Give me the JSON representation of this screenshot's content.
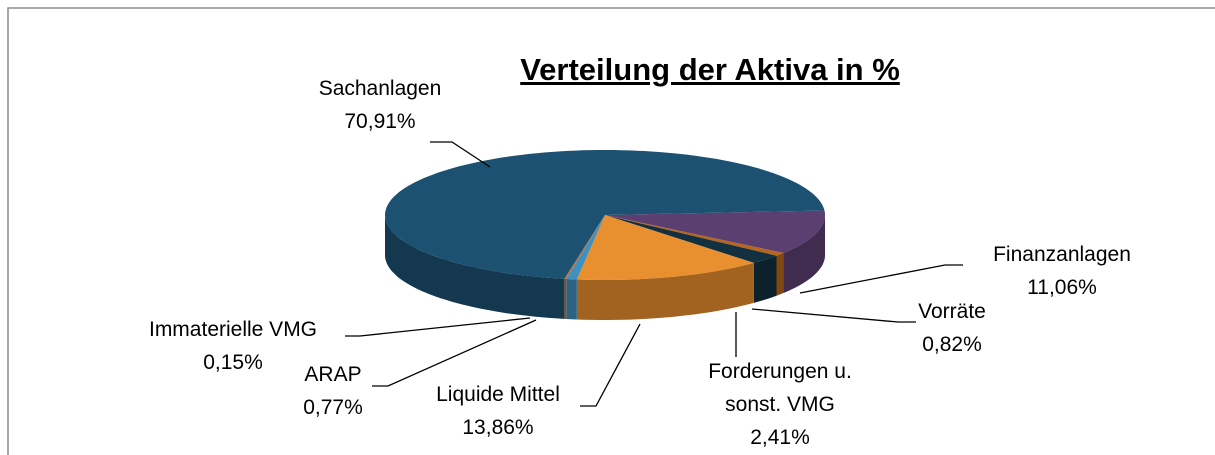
{
  "chart_data": {
    "type": "pie3d",
    "title": "Verteilung der Aktiva in %",
    "categories": [
      "Sachanlagen",
      "Finanzanlagen",
      "Vorräte",
      "Forderungen u. sonst. VMG",
      "Liquide Mittel",
      "ARAP",
      "Immaterielle VMG"
    ],
    "values": [
      70.91,
      11.06,
      0.82,
      2.41,
      13.86,
      0.77,
      0.15
    ],
    "value_labels": [
      "70,91%",
      "11,06%",
      "0,82%",
      "2,41%",
      "13,86%",
      "0,77%",
      "0,15%"
    ],
    "colors": [
      "#1d5172",
      "#5b3f70",
      "#b8661c",
      "#12303f",
      "#e88f30",
      "#3f8fbf",
      "#c37232"
    ]
  }
}
